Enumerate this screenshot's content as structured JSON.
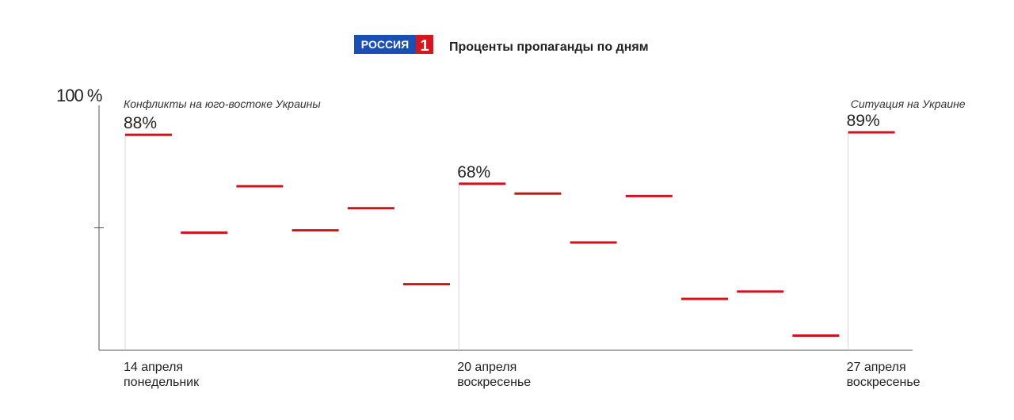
{
  "header": {
    "logo_text": "РОССИЯ",
    "logo_number": "1",
    "title": "Проценты пропаганды по дням"
  },
  "colors": {
    "mark": "#d0121b",
    "logo_blue": "#1a4fb5",
    "logo_red": "#d7161e"
  },
  "chart_data": {
    "type": "line",
    "title": "Проценты пропаганды по дням",
    "y_max_label": "100 %",
    "ylim": [
      0,
      100
    ],
    "y_ticks": [
      50
    ],
    "grid": false,
    "x_labels": [
      {
        "index": 0,
        "line1": "14 апреля",
        "line2": "понедельник"
      },
      {
        "index": 6,
        "line1": "20 апреля",
        "line2": "воскресенье"
      },
      {
        "index": 13,
        "line1": "27 апреля",
        "line2": "воскресенье"
      }
    ],
    "series": [
      {
        "values": [
          88,
          48,
          67,
          49,
          58,
          27,
          68,
          64,
          44,
          63,
          21,
          24,
          6,
          89
        ]
      }
    ],
    "data_labels": [
      {
        "index": 0,
        "text": "88%"
      },
      {
        "index": 6,
        "text": "68%"
      },
      {
        "index": 13,
        "text": "89%"
      }
    ],
    "annotations": [
      {
        "index": 0,
        "text": "Конфликты на юго-востоке Украины",
        "align": "start"
      },
      {
        "index": 13,
        "text": "Ситуация на Украине",
        "align": "end"
      }
    ]
  }
}
